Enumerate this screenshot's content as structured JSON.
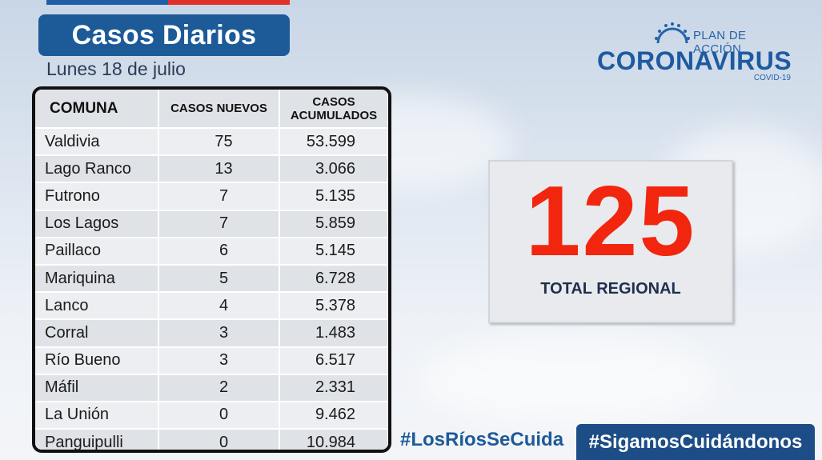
{
  "colors": {
    "title_bg": "#1c5a98",
    "total_number": "#f2260e",
    "brand_blue": "#1e5aa0",
    "flag_red": "#e0302a"
  },
  "header": {
    "title": "Casos Diarios",
    "date": "Lunes 18 de julio"
  },
  "table": {
    "columns": [
      "COMUNA",
      "CASOS NUEVOS",
      "CASOS ACUMULADOS"
    ],
    "rows": [
      [
        "Valdivia",
        "75",
        "53.599"
      ],
      [
        "Lago Ranco",
        "13",
        "3.066"
      ],
      [
        "Futrono",
        "7",
        "5.135"
      ],
      [
        "Los Lagos",
        "7",
        "5.859"
      ],
      [
        "Paillaco",
        "6",
        "5.145"
      ],
      [
        "Mariquina",
        "5",
        "6.728"
      ],
      [
        "Lanco",
        "4",
        "5.378"
      ],
      [
        "Corral",
        "3",
        "1.483"
      ],
      [
        "Río Bueno",
        "3",
        "6.517"
      ],
      [
        "Máfil",
        "2",
        "2.331"
      ],
      [
        "La Unión",
        "0",
        "9.462"
      ],
      [
        "Panguipulli",
        "0",
        "10.984"
      ]
    ]
  },
  "logo": {
    "plan": "PLAN DE ACCIÓN",
    "main": "CORONAVIRUS",
    "sub": "COVID-19",
    "icon": "virus-icon"
  },
  "total": {
    "value": "125",
    "label": "TOTAL REGIONAL"
  },
  "hashtags": {
    "primary": "#LosRíosSeCuida",
    "secondary": "#SigamosCuidándonos"
  }
}
